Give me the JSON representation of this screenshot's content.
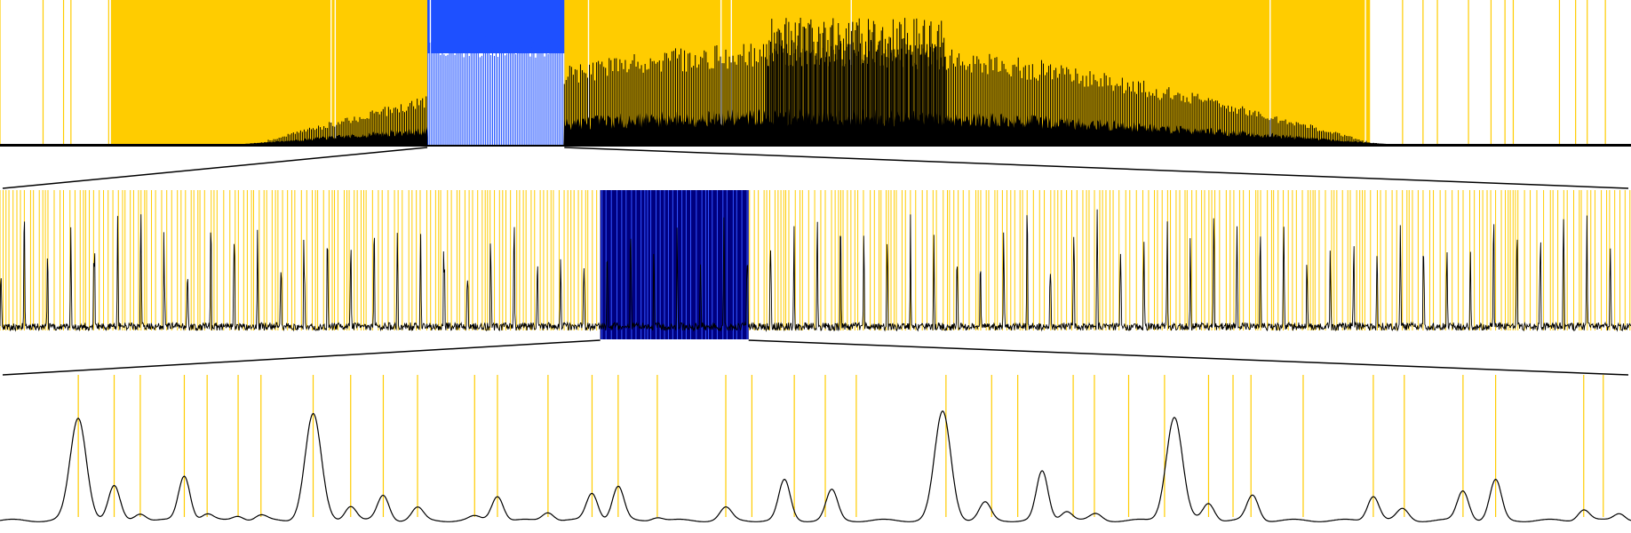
{
  "chart_data": [
    {
      "type": "line",
      "title": "",
      "xlabel": "",
      "ylabel": "",
      "xlim": [
        0,
        1000
      ],
      "ylim": [
        0,
        1
      ],
      "grid": false,
      "legend": "none",
      "zoom_region": [
        262,
        346
      ],
      "background_color": "#FFCC00",
      "zoom_color": "#1E50FF",
      "marker_color": "#FFCC00",
      "trace_color": "#000000",
      "sparse_edges": [
        [
          0,
          68
        ],
        [
          840,
          1000
        ]
      ]
    },
    {
      "type": "line",
      "title": "",
      "xlabel": "",
      "ylabel": "",
      "xlim": [
        0,
        1000
      ],
      "ylim": [
        0,
        1
      ],
      "grid": false,
      "legend": "none",
      "zoom_region": [
        368,
        459
      ],
      "marker_color": "#FFCC00",
      "zoom_color": "#000080",
      "trace_color": "#000000"
    },
    {
      "type": "line",
      "title": "",
      "xlabel": "",
      "ylabel": "",
      "xlim": [
        0,
        1000
      ],
      "ylim": [
        0,
        1
      ],
      "grid": false,
      "legend": "none",
      "marker_color": "#FFCC00",
      "trace_color": "#000000",
      "markers_x": [
        48,
        70,
        86,
        113,
        127,
        146,
        160,
        192,
        215,
        235,
        256,
        291,
        305,
        336,
        363,
        379,
        403,
        445,
        461,
        487,
        506,
        525,
        580,
        608,
        624,
        658,
        671,
        692,
        714,
        741,
        756,
        767,
        799,
        842,
        861,
        897,
        917,
        971,
        983
      ],
      "peaks": [
        {
          "x": 48,
          "y": 0.82
        },
        {
          "x": 70,
          "y": 0.27
        },
        {
          "x": 86,
          "y": 0.06
        },
        {
          "x": 113,
          "y": 0.36
        },
        {
          "x": 127,
          "y": 0.05
        },
        {
          "x": 146,
          "y": 0.04
        },
        {
          "x": 160,
          "y": 0.04
        },
        {
          "x": 192,
          "y": 0.85
        },
        {
          "x": 215,
          "y": 0.12
        },
        {
          "x": 235,
          "y": 0.2
        },
        {
          "x": 256,
          "y": 0.1
        },
        {
          "x": 291,
          "y": 0.03
        },
        {
          "x": 305,
          "y": 0.2
        },
        {
          "x": 336,
          "y": 0.07
        },
        {
          "x": 363,
          "y": 0.22
        },
        {
          "x": 379,
          "y": 0.27
        },
        {
          "x": 403,
          "y": 0.03
        },
        {
          "x": 445,
          "y": 0.1
        },
        {
          "x": 481,
          "y": 0.32
        },
        {
          "x": 510,
          "y": 0.24
        },
        {
          "x": 578,
          "y": 0.87
        },
        {
          "x": 604,
          "y": 0.14
        },
        {
          "x": 639,
          "y": 0.39
        },
        {
          "x": 654,
          "y": 0.08
        },
        {
          "x": 672,
          "y": 0.05
        },
        {
          "x": 720,
          "y": 0.83
        },
        {
          "x": 741,
          "y": 0.14
        },
        {
          "x": 768,
          "y": 0.2
        },
        {
          "x": 842,
          "y": 0.2
        },
        {
          "x": 860,
          "y": 0.09
        },
        {
          "x": 897,
          "y": 0.24
        },
        {
          "x": 917,
          "y": 0.32
        },
        {
          "x": 971,
          "y": 0.09
        },
        {
          "x": 993,
          "y": 0.06
        }
      ]
    }
  ]
}
